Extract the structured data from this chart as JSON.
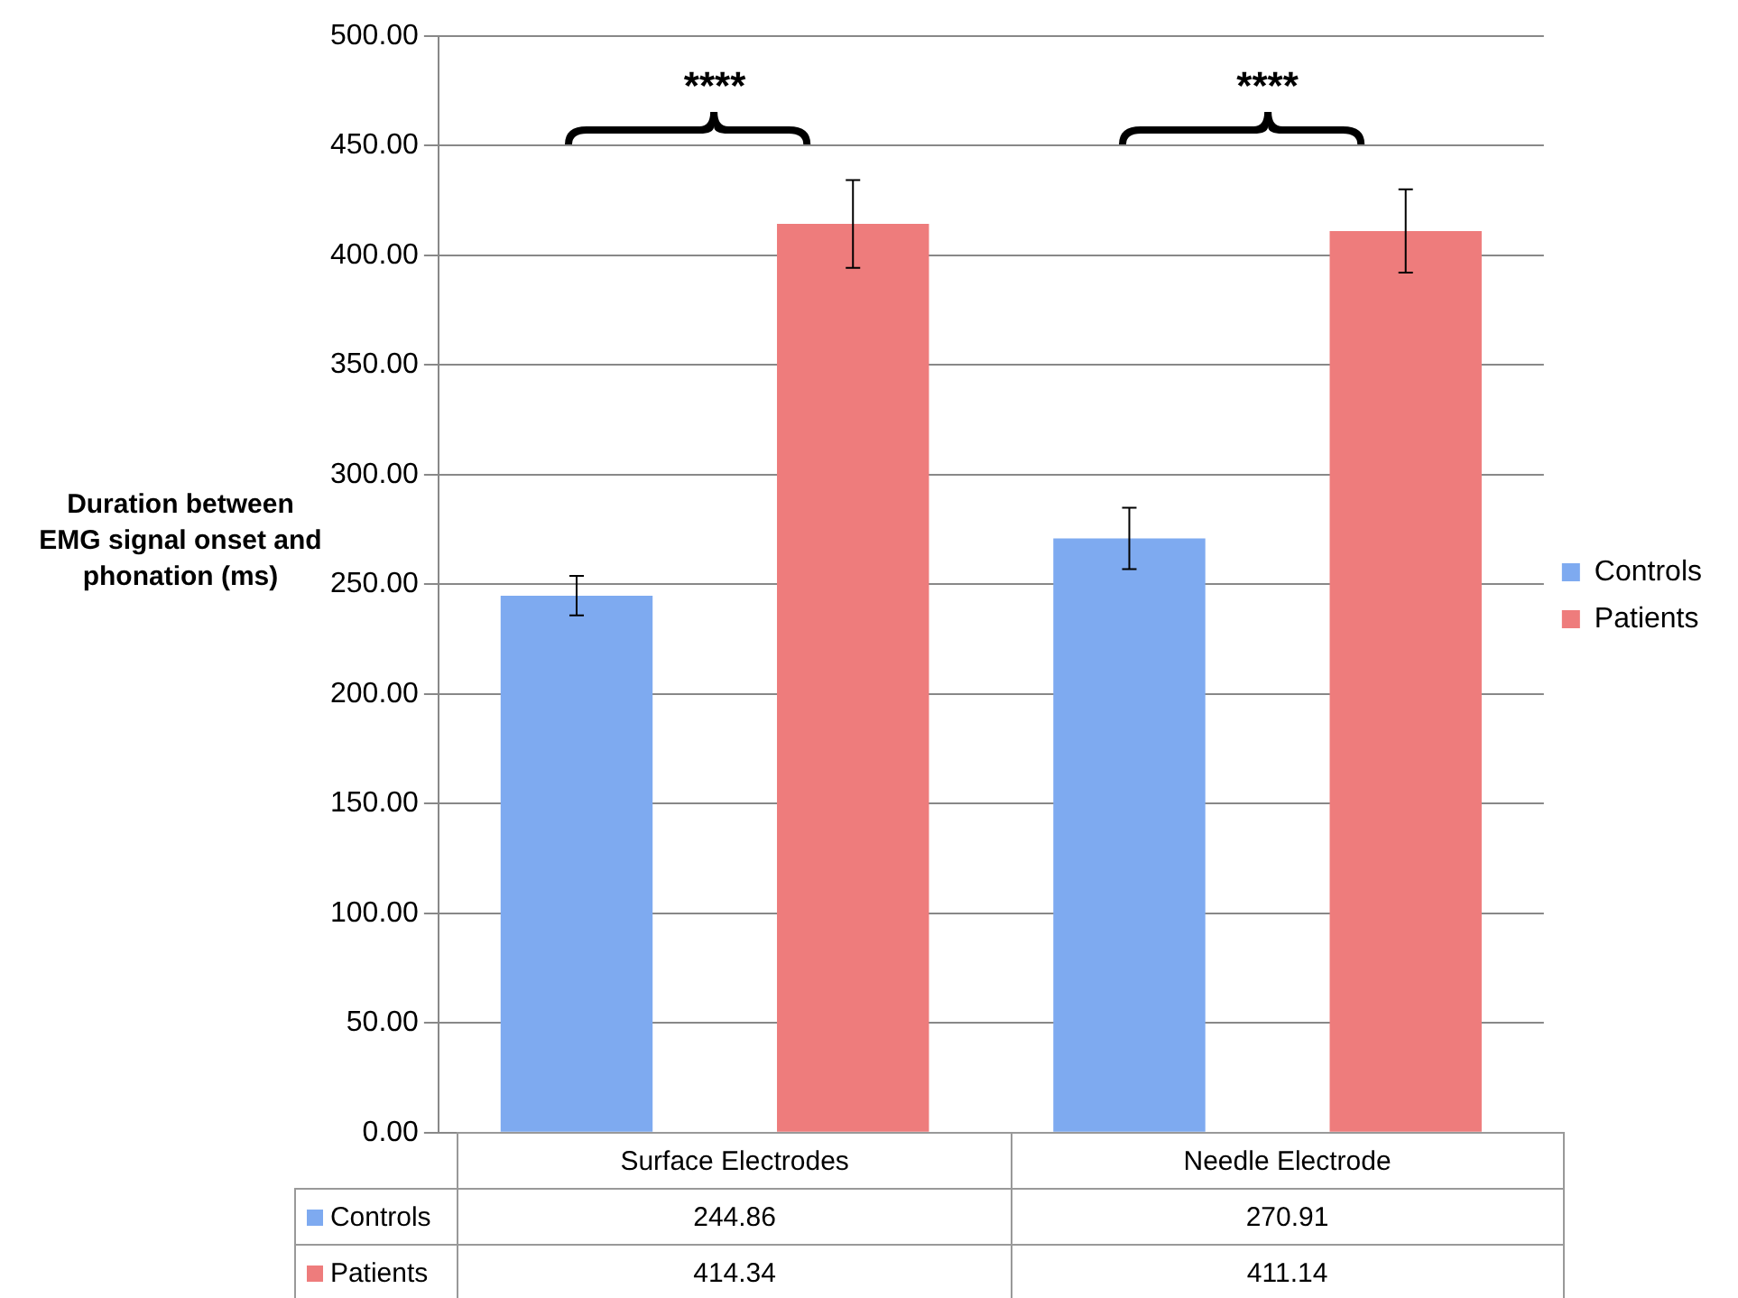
{
  "chart_data": {
    "type": "bar",
    "ylabel": "Duration between EMG signal onset and phonation (ms)",
    "categories": [
      "Surface Electrodes",
      "Needle Electrode"
    ],
    "series": [
      {
        "name": "Controls",
        "color": "#7eaaf0",
        "values": [
          244.86,
          270.91
        ],
        "errors": [
          9,
          14
        ]
      },
      {
        "name": "Patients",
        "color": "#ee7c7c",
        "values": [
          414.34,
          411.14
        ],
        "errors": [
          20,
          19
        ]
      }
    ],
    "ylim": [
      0,
      500
    ],
    "yticks": [
      {
        "value": 0,
        "label": "0.00"
      },
      {
        "value": 50,
        "label": "50.00"
      },
      {
        "value": 100,
        "label": "100.00"
      },
      {
        "value": 150,
        "label": "150.00"
      },
      {
        "value": 200,
        "label": "200.00"
      },
      {
        "value": 250,
        "label": "250.00"
      },
      {
        "value": 300,
        "label": "300.00"
      },
      {
        "value": 350,
        "label": "350.00"
      },
      {
        "value": 400,
        "label": "400.00"
      },
      {
        "value": 450,
        "label": "450.00"
      },
      {
        "value": 500,
        "label": "500.00"
      }
    ],
    "grid": "y",
    "legend": "right",
    "data_labels": true,
    "annotations": [
      "****",
      "****"
    ]
  }
}
